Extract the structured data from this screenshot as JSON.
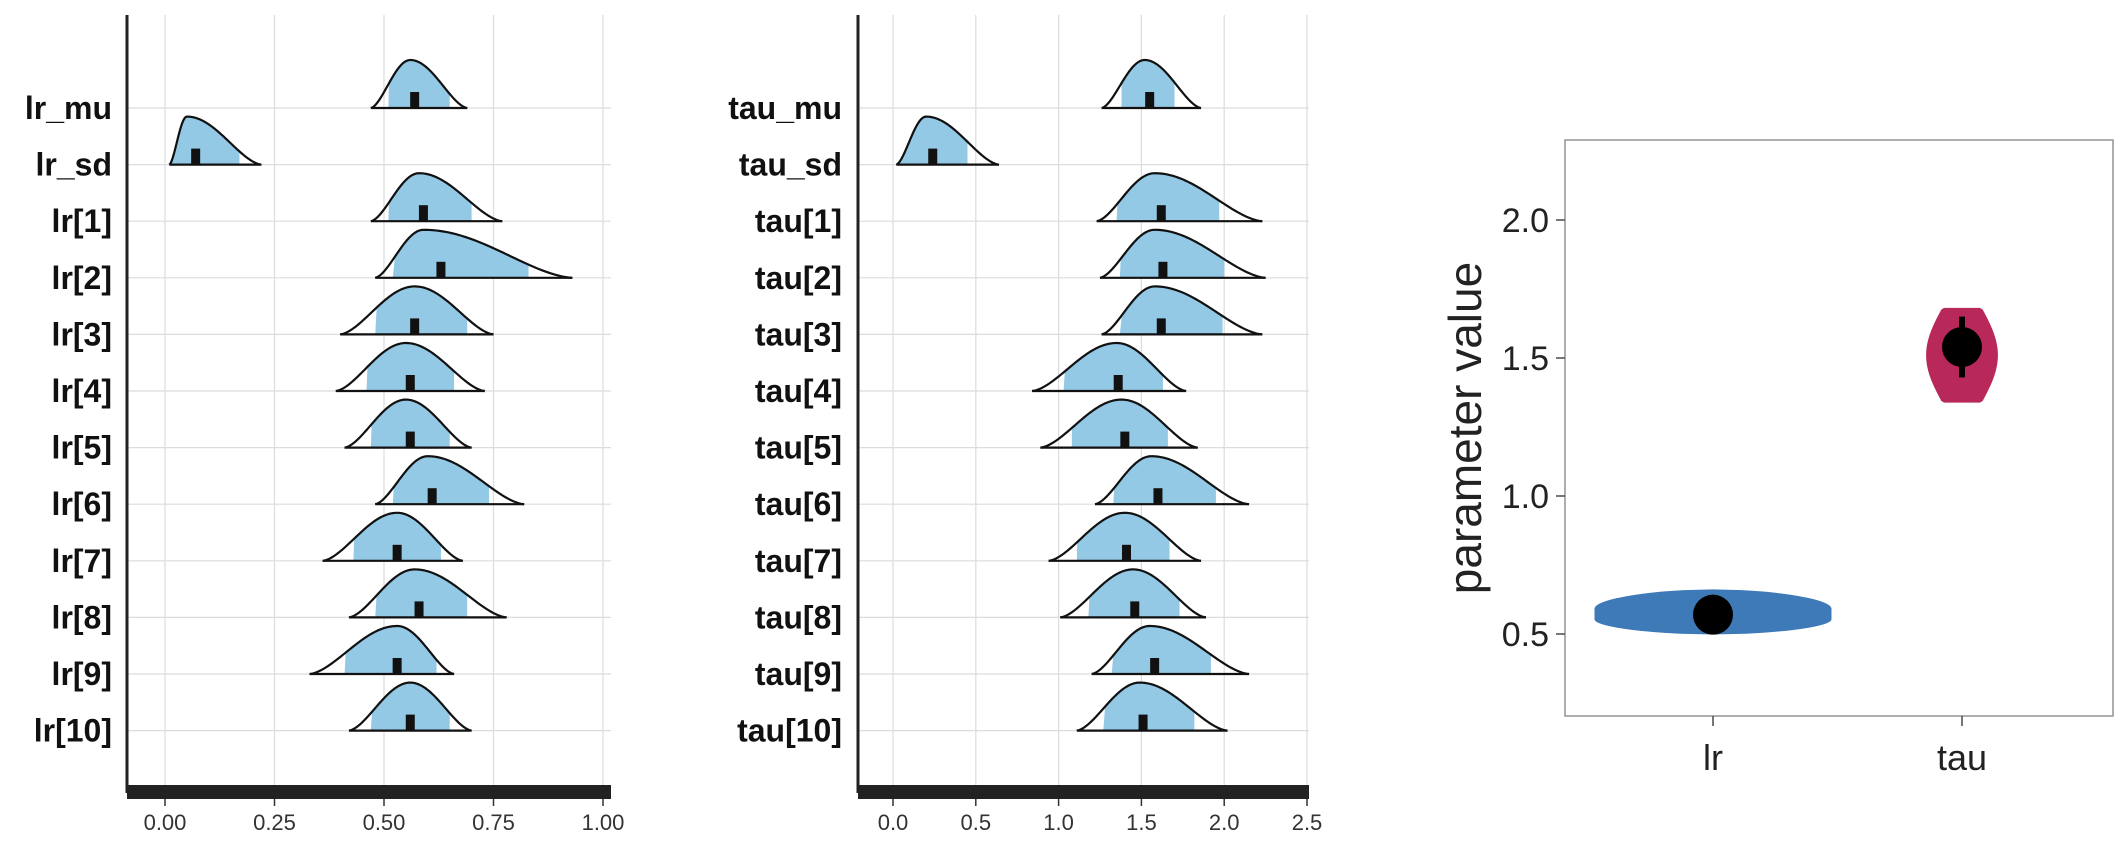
{
  "figure": {
    "panels_count": 3
  },
  "chart_data": [
    {
      "type": "ridgeline",
      "panel": "lr",
      "xlim": [
        -0.05,
        1.0
      ],
      "xticks": [
        0.0,
        0.25,
        0.5,
        0.75,
        1.0
      ],
      "xtick_labels": [
        "0.00",
        "0.25",
        "0.50",
        "0.75",
        "1.00"
      ],
      "grid": true,
      "fill_color": "#94c9e6",
      "rows": [
        {
          "label": "lr_mu",
          "median": 0.57,
          "inner": [
            0.51,
            0.65
          ],
          "range": [
            0.47,
            0.69
          ],
          "mode": 0.56
        },
        {
          "label": "lr_sd",
          "median": 0.07,
          "inner": [
            0.01,
            0.17
          ],
          "range": [
            0.01,
            0.22
          ],
          "mode": 0.05
        },
        {
          "label": "lr[1]",
          "median": 0.59,
          "inner": [
            0.51,
            0.7
          ],
          "range": [
            0.47,
            0.77
          ],
          "mode": 0.58
        },
        {
          "label": "lr[2]",
          "median": 0.63,
          "inner": [
            0.52,
            0.83
          ],
          "range": [
            0.48,
            0.93
          ],
          "mode": 0.59
        },
        {
          "label": "lr[3]",
          "median": 0.57,
          "inner": [
            0.48,
            0.69
          ],
          "range": [
            0.4,
            0.75
          ],
          "mode": 0.57
        },
        {
          "label": "lr[4]",
          "median": 0.56,
          "inner": [
            0.46,
            0.66
          ],
          "range": [
            0.39,
            0.73
          ],
          "mode": 0.55
        },
        {
          "label": "lr[5]",
          "median": 0.56,
          "inner": [
            0.47,
            0.65
          ],
          "range": [
            0.41,
            0.7
          ],
          "mode": 0.55
        },
        {
          "label": "lr[6]",
          "median": 0.61,
          "inner": [
            0.52,
            0.74
          ],
          "range": [
            0.48,
            0.82
          ],
          "mode": 0.6
        },
        {
          "label": "lr[7]",
          "median": 0.53,
          "inner": [
            0.43,
            0.63
          ],
          "range": [
            0.36,
            0.68
          ],
          "mode": 0.53
        },
        {
          "label": "lr[8]",
          "median": 0.58,
          "inner": [
            0.48,
            0.69
          ],
          "range": [
            0.42,
            0.78
          ],
          "mode": 0.57
        },
        {
          "label": "lr[9]",
          "median": 0.53,
          "inner": [
            0.41,
            0.62
          ],
          "range": [
            0.33,
            0.66
          ],
          "mode": 0.53
        },
        {
          "label": "lr[10]",
          "median": 0.56,
          "inner": [
            0.47,
            0.65
          ],
          "range": [
            0.42,
            0.7
          ],
          "mode": 0.56
        }
      ]
    },
    {
      "type": "ridgeline",
      "panel": "tau",
      "xlim": [
        -0.2,
        2.5
      ],
      "xticks": [
        0.0,
        0.5,
        1.0,
        1.5,
        2.0,
        2.5
      ],
      "xtick_labels": [
        "0.0",
        "0.5",
        "1.0",
        "1.5",
        "2.0",
        "2.5"
      ],
      "grid": true,
      "fill_color": "#94c9e6",
      "rows": [
        {
          "label": "tau_mu",
          "median": 1.55,
          "inner": [
            1.38,
            1.7
          ],
          "range": [
            1.26,
            1.86
          ],
          "mode": 1.52
        },
        {
          "label": "tau_sd",
          "median": 0.24,
          "inner": [
            0.02,
            0.45
          ],
          "range": [
            0.02,
            0.64
          ],
          "mode": 0.2
        },
        {
          "label": "tau[1]",
          "median": 1.62,
          "inner": [
            1.35,
            1.97
          ],
          "range": [
            1.23,
            2.23
          ],
          "mode": 1.58
        },
        {
          "label": "tau[2]",
          "median": 1.63,
          "inner": [
            1.37,
            2.0
          ],
          "range": [
            1.25,
            2.25
          ],
          "mode": 1.58
        },
        {
          "label": "tau[3]",
          "median": 1.62,
          "inner": [
            1.37,
            1.99
          ],
          "range": [
            1.26,
            2.23
          ],
          "mode": 1.58
        },
        {
          "label": "tau[4]",
          "median": 1.36,
          "inner": [
            1.03,
            1.63
          ],
          "range": [
            0.84,
            1.77
          ],
          "mode": 1.35
        },
        {
          "label": "tau[5]",
          "median": 1.4,
          "inner": [
            1.08,
            1.66
          ],
          "range": [
            0.89,
            1.84
          ],
          "mode": 1.38
        },
        {
          "label": "tau[6]",
          "median": 1.6,
          "inner": [
            1.33,
            1.95
          ],
          "range": [
            1.22,
            2.15
          ],
          "mode": 1.56
        },
        {
          "label": "tau[7]",
          "median": 1.41,
          "inner": [
            1.11,
            1.67
          ],
          "range": [
            0.94,
            1.86
          ],
          "mode": 1.4
        },
        {
          "label": "tau[8]",
          "median": 1.46,
          "inner": [
            1.18,
            1.73
          ],
          "range": [
            1.01,
            1.89
          ],
          "mode": 1.45
        },
        {
          "label": "tau[9]",
          "median": 1.58,
          "inner": [
            1.32,
            1.92
          ],
          "range": [
            1.2,
            2.15
          ],
          "mode": 1.55
        },
        {
          "label": "tau[10]",
          "median": 1.51,
          "inner": [
            1.27,
            1.82
          ],
          "range": [
            1.11,
            2.02
          ],
          "mode": 1.49
        }
      ]
    },
    {
      "type": "violin",
      "panel": "summary",
      "ylabel": "parameter value",
      "ylim": [
        0.2,
        2.3
      ],
      "yticks": [
        0.5,
        1.0,
        1.5,
        2.0
      ],
      "ytick_labels": [
        "0.5",
        "1.0",
        "1.5",
        "2.0"
      ],
      "categories": [
        "lr",
        "tau"
      ],
      "violins": [
        {
          "category": "lr",
          "color": "#3f7ab8",
          "min": 0.5,
          "max": 0.66,
          "median": 0.57,
          "q_low": 0.53,
          "q_high": 0.62,
          "max_width": 1.0
        },
        {
          "category": "tau",
          "color": "#b8285a",
          "min": 1.34,
          "max": 1.68,
          "median": 1.54,
          "q_low": 1.43,
          "q_high": 1.65,
          "max_width": 0.3
        }
      ],
      "median_point_color": "#000000",
      "grid": false
    }
  ]
}
